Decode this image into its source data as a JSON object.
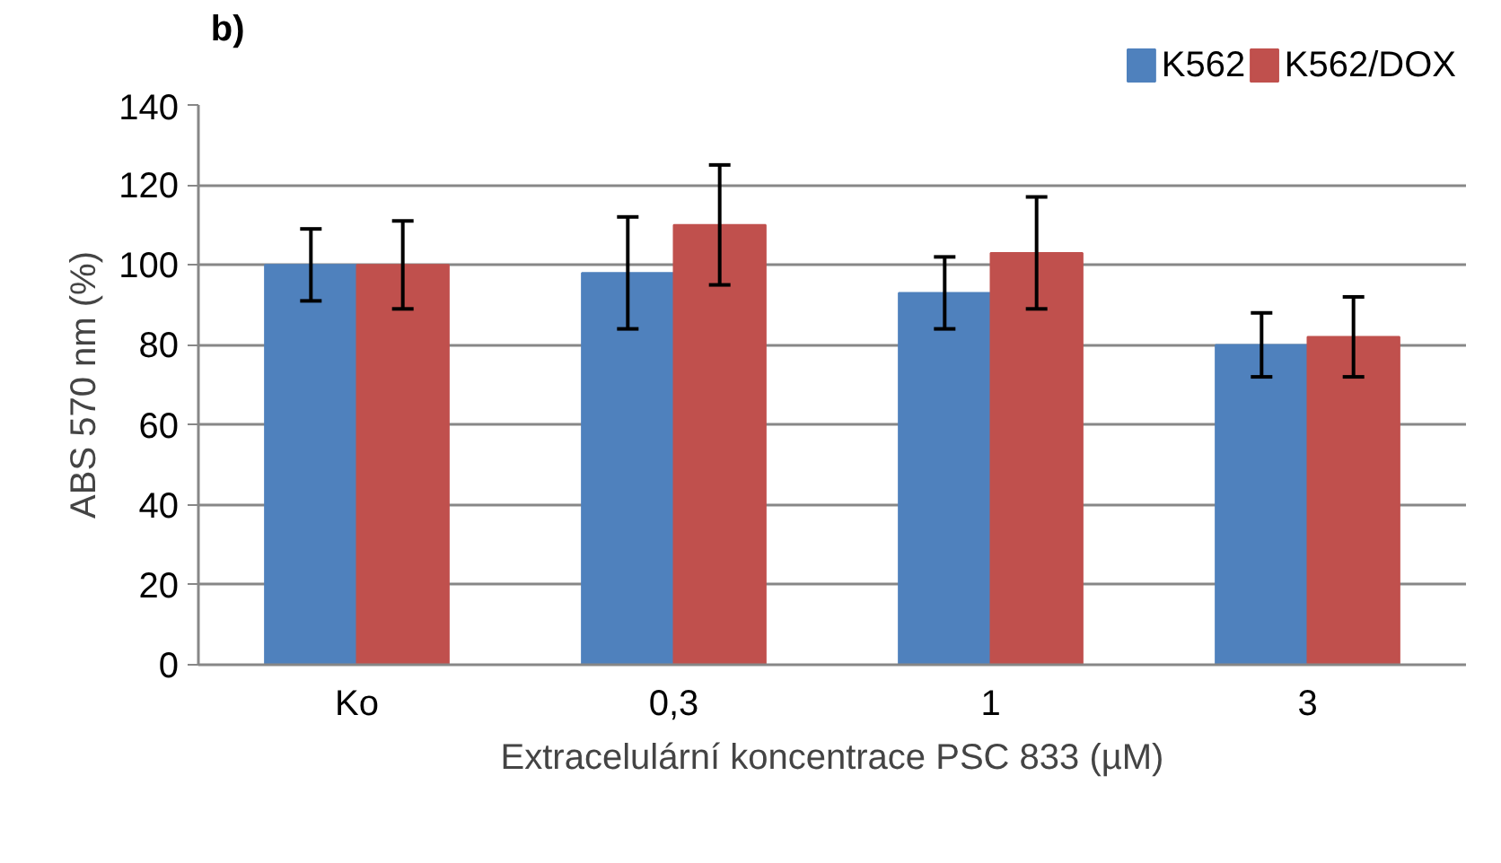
{
  "chart_data": {
    "type": "bar",
    "xlabel": "Extracelulární koncentrace PSC 833 (µM)",
    "ylabel": "ABS 570 nm (%)",
    "annotations": [
      "b)"
    ],
    "categories": [
      "Ko",
      "0,3",
      "1",
      "3"
    ],
    "series": [
      {
        "name": "K562",
        "color": "#4f81bd",
        "values": [
          100,
          98,
          93,
          80
        ],
        "errors": [
          9,
          14,
          9,
          8
        ]
      },
      {
        "name": "K562/DOX",
        "color": "#c0504d",
        "values": [
          100,
          110,
          103,
          82
        ],
        "errors": [
          11,
          15,
          14,
          10
        ]
      }
    ],
    "ylim": [
      0,
      140
    ],
    "yticks": [
      0,
      20,
      40,
      60,
      80,
      100,
      120,
      140
    ],
    "grid": "y",
    "legend": "top right"
  }
}
